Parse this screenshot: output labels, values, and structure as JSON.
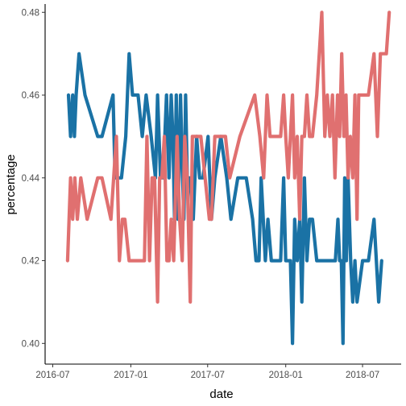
{
  "chart_data": {
    "type": "line",
    "xlabel": "date",
    "ylabel": "percentage",
    "x_ticks": [
      "2016-07",
      "2017-01",
      "2017-07",
      "2018-01",
      "2018-07"
    ],
    "y_ticks": [
      0.4,
      0.42,
      0.44,
      0.46,
      0.48
    ],
    "y_tick_labels": [
      "0.40",
      "0.42",
      "0.44",
      "0.46",
      "0.48"
    ],
    "xlim": [
      "2016-06-13",
      "2018-09-30"
    ],
    "ylim": [
      0.395,
      0.482
    ],
    "grid": false,
    "legend": "none",
    "series": [
      {
        "color": "#1a72a5",
        "points": [
          [
            "2016-08-07",
            0.46
          ],
          [
            "2016-08-12",
            0.45
          ],
          [
            "2016-08-17",
            0.46
          ],
          [
            "2016-08-21",
            0.45
          ],
          [
            "2016-08-25",
            0.46
          ],
          [
            "2016-09-01",
            0.47
          ],
          [
            "2016-09-15",
            0.46
          ],
          [
            "2016-10-15",
            0.45
          ],
          [
            "2016-10-25",
            0.45
          ],
          [
            "2016-11-20",
            0.46
          ],
          [
            "2016-11-25",
            0.44
          ],
          [
            "2016-12-01",
            0.44
          ],
          [
            "2016-12-10",
            0.44
          ],
          [
            "2016-12-20",
            0.45
          ],
          [
            "2016-12-28",
            0.47
          ],
          [
            "2017-01-05",
            0.46
          ],
          [
            "2017-01-18",
            0.46
          ],
          [
            "2017-01-28",
            0.45
          ],
          [
            "2017-02-06",
            0.46
          ],
          [
            "2017-02-18",
            0.45
          ],
          [
            "2017-02-28",
            0.44
          ],
          [
            "2017-03-05",
            0.46
          ],
          [
            "2017-03-12",
            0.44
          ],
          [
            "2017-03-18",
            0.44
          ],
          [
            "2017-03-26",
            0.46
          ],
          [
            "2017-04-01",
            0.44
          ],
          [
            "2017-04-06",
            0.46
          ],
          [
            "2017-04-10",
            0.45
          ],
          [
            "2017-04-14",
            0.43
          ],
          [
            "2017-04-18",
            0.46
          ],
          [
            "2017-04-22",
            0.43
          ],
          [
            "2017-04-28",
            0.46
          ],
          [
            "2017-05-03",
            0.44
          ],
          [
            "2017-05-06",
            0.43
          ],
          [
            "2017-05-10",
            0.46
          ],
          [
            "2017-05-14",
            0.44
          ],
          [
            "2017-05-20",
            0.44
          ],
          [
            "2017-05-28",
            0.43
          ],
          [
            "2017-06-05",
            0.45
          ],
          [
            "2017-06-12",
            0.44
          ],
          [
            "2017-06-20",
            0.44
          ],
          [
            "2017-07-02",
            0.45
          ],
          [
            "2017-07-10",
            0.43
          ],
          [
            "2017-07-18",
            0.44
          ],
          [
            "2017-08-01",
            0.45
          ],
          [
            "2017-08-15",
            0.44
          ],
          [
            "2017-08-25",
            0.43
          ],
          [
            "2017-09-10",
            0.44
          ],
          [
            "2017-09-30",
            0.44
          ],
          [
            "2017-10-15",
            0.43
          ],
          [
            "2017-10-23",
            0.42
          ],
          [
            "2017-10-30",
            0.42
          ],
          [
            "2017-11-04",
            0.44
          ],
          [
            "2017-11-09",
            0.43
          ],
          [
            "2017-11-14",
            0.42
          ],
          [
            "2017-11-20",
            0.43
          ],
          [
            "2017-11-28",
            0.42
          ],
          [
            "2017-12-20",
            0.42
          ],
          [
            "2017-12-27",
            0.44
          ],
          [
            "2018-01-01",
            0.42
          ],
          [
            "2018-01-07",
            0.42
          ],
          [
            "2018-01-12",
            0.42
          ],
          [
            "2018-01-17",
            0.4
          ],
          [
            "2018-01-22",
            0.43
          ],
          [
            "2018-01-28",
            0.42
          ],
          [
            "2018-02-03",
            0.43
          ],
          [
            "2018-02-08",
            0.41
          ],
          [
            "2018-02-14",
            0.44
          ],
          [
            "2018-02-20",
            0.42
          ],
          [
            "2018-02-26",
            0.43
          ],
          [
            "2018-03-05",
            0.43
          ],
          [
            "2018-03-15",
            0.42
          ],
          [
            "2018-04-01",
            0.42
          ],
          [
            "2018-04-15",
            0.42
          ],
          [
            "2018-04-28",
            0.42
          ],
          [
            "2018-05-04",
            0.43
          ],
          [
            "2018-05-08",
            0.42
          ],
          [
            "2018-05-12",
            0.42
          ],
          [
            "2018-05-16",
            0.4
          ],
          [
            "2018-05-20",
            0.44
          ],
          [
            "2018-05-24",
            0.42
          ],
          [
            "2018-05-28",
            0.44
          ],
          [
            "2018-06-03",
            0.42
          ],
          [
            "2018-06-08",
            0.41
          ],
          [
            "2018-06-13",
            0.42
          ],
          [
            "2018-06-18",
            0.41
          ],
          [
            "2018-07-01",
            0.42
          ],
          [
            "2018-07-15",
            0.42
          ],
          [
            "2018-07-28",
            0.43
          ],
          [
            "2018-08-08",
            0.41
          ],
          [
            "2018-08-15",
            0.42
          ]
        ]
      },
      {
        "color": "#e07070",
        "points": [
          [
            "2016-08-05",
            0.42
          ],
          [
            "2016-08-12",
            0.44
          ],
          [
            "2016-08-17",
            0.43
          ],
          [
            "2016-08-22",
            0.44
          ],
          [
            "2016-08-28",
            0.43
          ],
          [
            "2016-09-05",
            0.44
          ],
          [
            "2016-09-20",
            0.43
          ],
          [
            "2016-10-15",
            0.44
          ],
          [
            "2016-10-25",
            0.44
          ],
          [
            "2016-11-15",
            0.43
          ],
          [
            "2016-11-28",
            0.45
          ],
          [
            "2016-12-05",
            0.42
          ],
          [
            "2016-12-12",
            0.43
          ],
          [
            "2016-12-18",
            0.43
          ],
          [
            "2016-12-28",
            0.42
          ],
          [
            "2017-01-05",
            0.42
          ],
          [
            "2017-01-28",
            0.42
          ],
          [
            "2017-02-02",
            0.42
          ],
          [
            "2017-02-08",
            0.45
          ],
          [
            "2017-02-14",
            0.42
          ],
          [
            "2017-02-20",
            0.44
          ],
          [
            "2017-02-26",
            0.44
          ],
          [
            "2017-03-05",
            0.41
          ],
          [
            "2017-03-10",
            0.44
          ],
          [
            "2017-03-15",
            0.44
          ],
          [
            "2017-03-21",
            0.45
          ],
          [
            "2017-03-27",
            0.42
          ],
          [
            "2017-04-01",
            0.42
          ],
          [
            "2017-04-06",
            0.43
          ],
          [
            "2017-04-12",
            0.42
          ],
          [
            "2017-04-20",
            0.45
          ],
          [
            "2017-04-26",
            0.43
          ],
          [
            "2017-05-02",
            0.42
          ],
          [
            "2017-05-08",
            0.45
          ],
          [
            "2017-05-14",
            0.44
          ],
          [
            "2017-05-21",
            0.41
          ],
          [
            "2017-05-26",
            0.45
          ],
          [
            "2017-06-05",
            0.45
          ],
          [
            "2017-06-15",
            0.45
          ],
          [
            "2017-06-25",
            0.44
          ],
          [
            "2017-07-05",
            0.43
          ],
          [
            "2017-07-10",
            0.43
          ],
          [
            "2017-07-18",
            0.45
          ],
          [
            "2017-08-01",
            0.45
          ],
          [
            "2017-08-12",
            0.45
          ],
          [
            "2017-08-22",
            0.44
          ],
          [
            "2017-09-15",
            0.45
          ],
          [
            "2017-10-20",
            0.46
          ],
          [
            "2017-11-01",
            0.45
          ],
          [
            "2017-11-10",
            0.44
          ],
          [
            "2017-11-18",
            0.46
          ],
          [
            "2017-11-25",
            0.45
          ],
          [
            "2017-12-05",
            0.45
          ],
          [
            "2017-12-20",
            0.45
          ],
          [
            "2017-12-27",
            0.46
          ],
          [
            "2018-01-01",
            0.45
          ],
          [
            "2018-01-07",
            0.44
          ],
          [
            "2018-01-12",
            0.45
          ],
          [
            "2018-01-17",
            0.46
          ],
          [
            "2018-01-22",
            0.44
          ],
          [
            "2018-01-28",
            0.45
          ],
          [
            "2018-02-03",
            0.43
          ],
          [
            "2018-02-08",
            0.45
          ],
          [
            "2018-02-14",
            0.45
          ],
          [
            "2018-02-20",
            0.46
          ],
          [
            "2018-02-26",
            0.45
          ],
          [
            "2018-03-05",
            0.45
          ],
          [
            "2018-03-15",
            0.46
          ],
          [
            "2018-03-27",
            0.48
          ],
          [
            "2018-04-03",
            0.45
          ],
          [
            "2018-04-09",
            0.46
          ],
          [
            "2018-04-15",
            0.45
          ],
          [
            "2018-04-21",
            0.46
          ],
          [
            "2018-04-27",
            0.44
          ],
          [
            "2018-05-03",
            0.46
          ],
          [
            "2018-05-08",
            0.45
          ],
          [
            "2018-05-13",
            0.47
          ],
          [
            "2018-05-18",
            0.45
          ],
          [
            "2018-05-23",
            0.46
          ],
          [
            "2018-05-28",
            0.44
          ],
          [
            "2018-06-02",
            0.45
          ],
          [
            "2018-06-08",
            0.44
          ],
          [
            "2018-06-13",
            0.46
          ],
          [
            "2018-06-18",
            0.43
          ],
          [
            "2018-06-22",
            0.46
          ],
          [
            "2018-07-01",
            0.46
          ],
          [
            "2018-07-15",
            0.46
          ],
          [
            "2018-07-28",
            0.47
          ],
          [
            "2018-08-05",
            0.45
          ],
          [
            "2018-08-12",
            0.47
          ],
          [
            "2018-08-18",
            0.47
          ],
          [
            "2018-08-26",
            0.47
          ],
          [
            "2018-09-02",
            0.48
          ]
        ]
      }
    ]
  }
}
